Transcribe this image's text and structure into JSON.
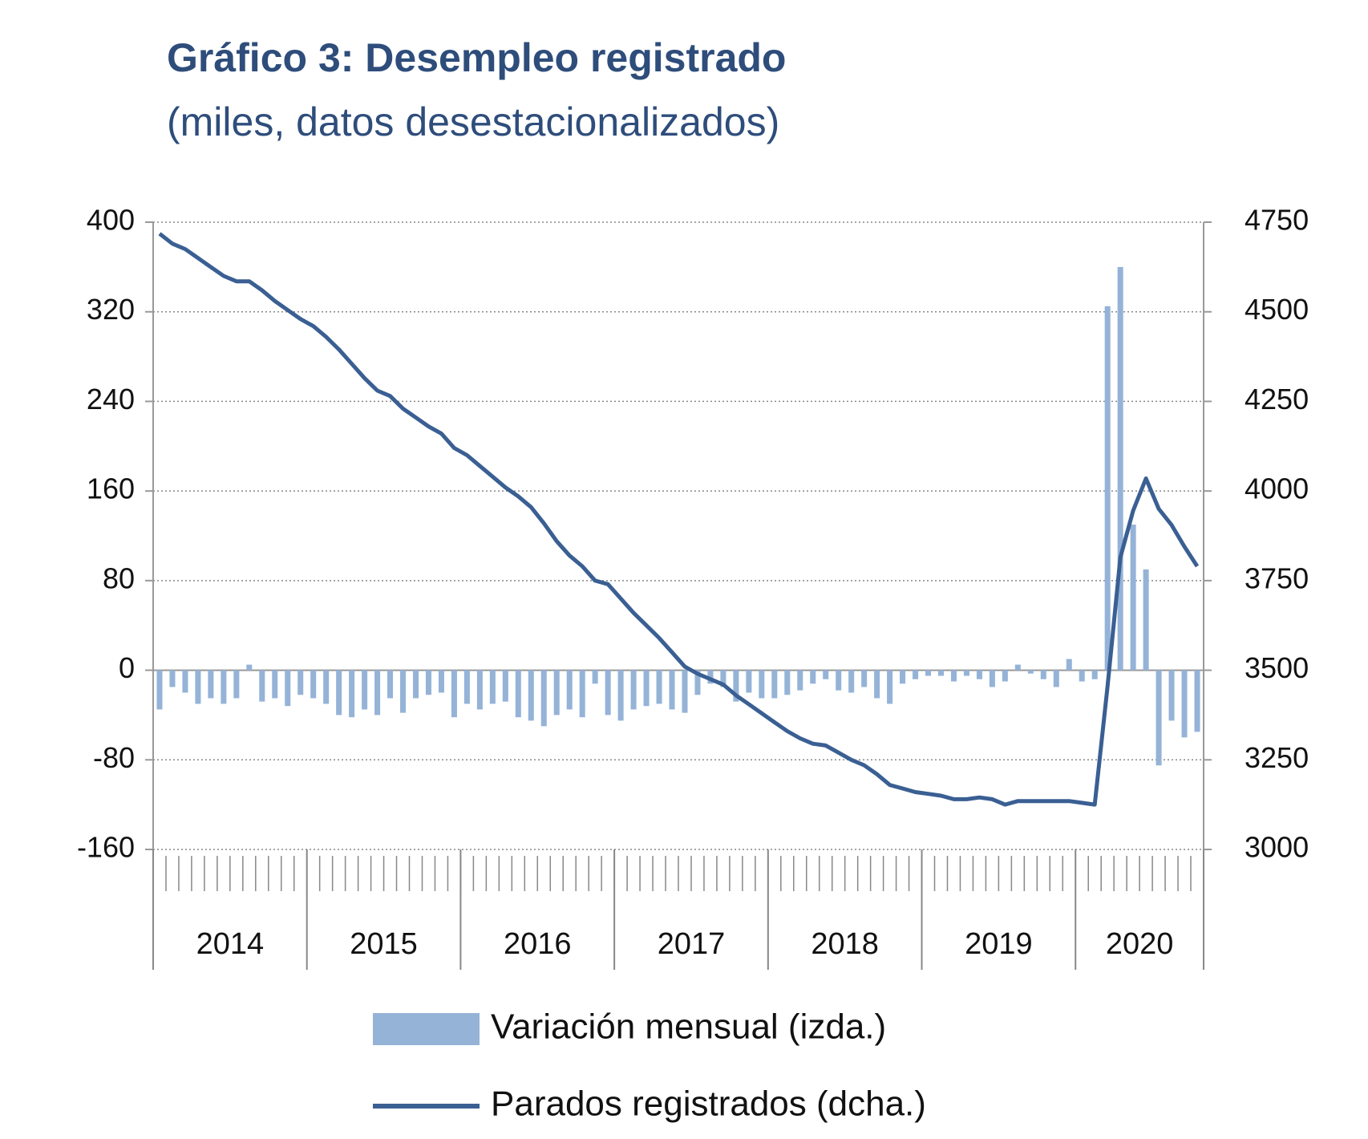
{
  "chart_data": {
    "type": "bar-line",
    "title": "Gráfico 3: Desempleo registrado",
    "subtitle": "(miles, datos desestacionalizados)",
    "categories": [
      "2014",
      null,
      null,
      null,
      null,
      null,
      null,
      null,
      null,
      null,
      null,
      null,
      "2015",
      null,
      null,
      null,
      null,
      null,
      null,
      null,
      null,
      null,
      null,
      null,
      "2016",
      null,
      null,
      null,
      null,
      null,
      null,
      null,
      null,
      null,
      null,
      null,
      "2017",
      null,
      null,
      null,
      null,
      null,
      null,
      null,
      null,
      null,
      null,
      null,
      "2018",
      null,
      null,
      null,
      null,
      null,
      null,
      null,
      null,
      null,
      null,
      null,
      "2019",
      null,
      null,
      null,
      null,
      null,
      null,
      null,
      null,
      null,
      null,
      null,
      "2020",
      null,
      null,
      null,
      null,
      null,
      null,
      null,
      null,
      null
    ],
    "series": [
      {
        "name": "Variación mensual (izda.)",
        "color": "#95b3d7",
        "kind": "bar",
        "axis": "y",
        "values": [
          -35,
          -15,
          -20,
          -30,
          -25,
          -30,
          -25,
          5,
          -28,
          -25,
          -32,
          -22,
          -25,
          -30,
          -40,
          -42,
          -35,
          -40,
          -25,
          -38,
          -25,
          -22,
          -20,
          -42,
          -30,
          -35,
          -30,
          -28,
          -42,
          -45,
          -50,
          -40,
          -35,
          -42,
          -12,
          -40,
          -45,
          -35,
          -32,
          -30,
          -35,
          -38,
          -22,
          -12,
          -15,
          -28,
          -20,
          -25,
          -25,
          -22,
          -18,
          -12,
          -8,
          -18,
          -20,
          -15,
          -25,
          -30,
          -12,
          -8,
          -5,
          -5,
          -10,
          -5,
          -8,
          -15,
          -10,
          5,
          -3,
          -8,
          -15,
          10,
          -10,
          -8,
          325,
          360,
          130,
          90,
          -85,
          -45,
          -60,
          -55
        ]
      },
      {
        "name": "Parados registrados (dcha.)",
        "color": "#3a5f93",
        "kind": "line",
        "axis": "y2",
        "values": [
          4718,
          4690,
          4675,
          4650,
          4625,
          4600,
          4585,
          4585,
          4560,
          4530,
          4505,
          4480,
          4460,
          4430,
          4395,
          4355,
          4315,
          4280,
          4265,
          4230,
          4205,
          4180,
          4160,
          4120,
          4100,
          4070,
          4040,
          4010,
          3985,
          3955,
          3910,
          3860,
          3820,
          3790,
          3750,
          3740,
          3700,
          3660,
          3625,
          3590,
          3550,
          3510,
          3490,
          3475,
          3460,
          3430,
          3405,
          3380,
          3355,
          3330,
          3310,
          3295,
          3290,
          3270,
          3250,
          3235,
          3210,
          3180,
          3170,
          3160,
          3155,
          3150,
          3140,
          3140,
          3145,
          3140,
          3125,
          3135,
          3135,
          3135,
          3135,
          3135,
          3130,
          3125,
          3455,
          3815,
          3945,
          4035,
          3950,
          3905,
          3845,
          3790
        ]
      }
    ],
    "ylim": [
      -160,
      400
    ],
    "yticks": [
      -160,
      -80,
      0,
      80,
      160,
      240,
      320,
      400
    ],
    "y2lim": [
      3000,
      4750
    ],
    "y2ticks": [
      3000,
      3250,
      3500,
      3750,
      4000,
      4250,
      4500,
      4750
    ],
    "grid": true
  }
}
